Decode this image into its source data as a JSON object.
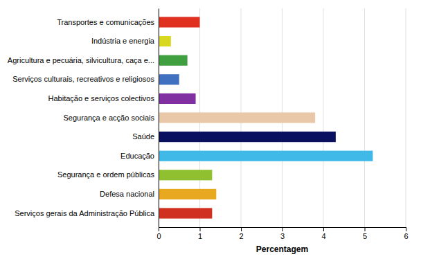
{
  "chart_data": {
    "type": "bar",
    "orientation": "horizontal",
    "categories": [
      "Transportes e comunicações",
      "Indústria e energia",
      "Agricultura e pecuária, silvicultura, caça e...",
      "Serviços culturais, recreativos e religiosos",
      "Habitação e serviços colectivos",
      "Segurança e acção sociais",
      "Saúde",
      "Educação",
      "Segurança e ordem públicas",
      "Defesa nacional",
      "Serviços gerais da Administração Pública"
    ],
    "values": [
      1.0,
      0.3,
      0.7,
      0.5,
      0.9,
      3.8,
      4.3,
      5.2,
      1.3,
      1.4,
      1.3
    ],
    "colors": [
      "#e03020",
      "#d8d820",
      "#40a040",
      "#4070c0",
      "#8030a0",
      "#e8c8a8",
      "#0a1060",
      "#40b8e8",
      "#90c030",
      "#e8a820",
      "#d03020"
    ],
    "xlabel": "Percentagem",
    "xlim": [
      0,
      6
    ],
    "xticks": [
      0,
      1,
      2,
      3,
      4,
      5,
      6
    ],
    "grid": true
  }
}
